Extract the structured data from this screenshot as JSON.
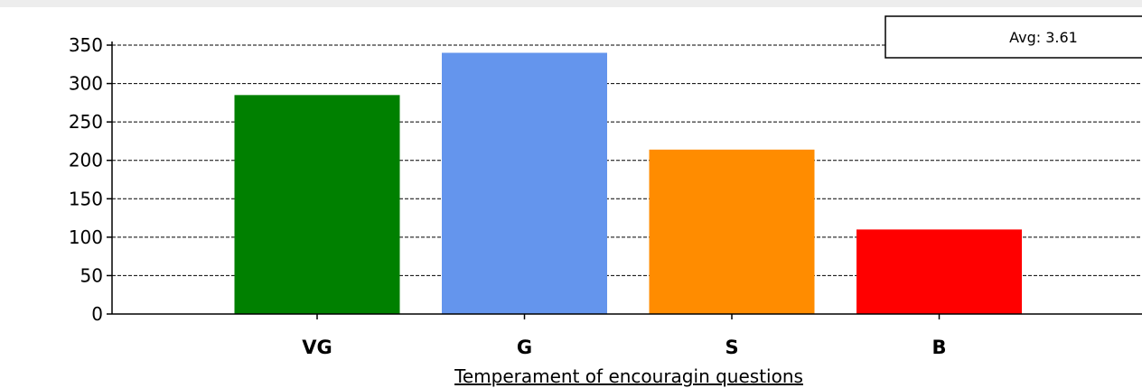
{
  "chart_data": {
    "type": "bar",
    "categories": [
      "VG",
      "G",
      "S",
      "B"
    ],
    "values": [
      285,
      340,
      214,
      110
    ],
    "colors": [
      "#008000",
      "#6495ED",
      "#FF8C00",
      "#FF0000"
    ],
    "xlabel": "Temperament of encouragin questions",
    "ylabel": "",
    "ylim": [
      0,
      350
    ],
    "yticks": [
      0,
      50,
      100,
      150,
      200,
      250,
      300,
      350
    ],
    "grid": true,
    "legend": {
      "text": "Avg: 3.61",
      "placement": "top-right"
    }
  }
}
